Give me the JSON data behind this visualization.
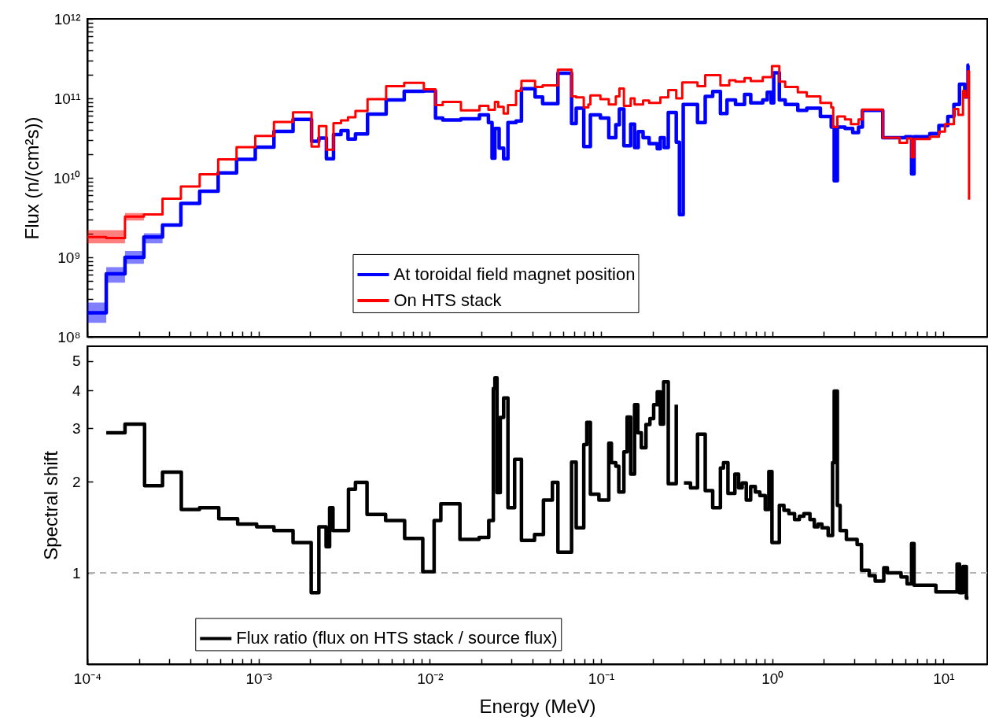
{
  "chart_data": [
    {
      "type": "step",
      "ylabel": "Flux (n/(cm²s))",
      "log": "xy",
      "legend": "bottom",
      "tick_labels": "y",
      "xlim": [
        0.0001,
        18
      ],
      "xticks": [
        {
          "value": 0.0001,
          "label": null
        },
        {
          "value": 0.0002,
          "label": null
        },
        {
          "value": 0.0003,
          "label": null
        },
        {
          "value": 0.0004,
          "label": null
        },
        {
          "value": 0.0005,
          "label": null
        },
        {
          "value": 0.0006,
          "label": null
        },
        {
          "value": 0.0007,
          "label": null
        },
        {
          "value": 0.0008,
          "label": null
        },
        {
          "value": 0.0009,
          "label": null
        },
        {
          "value": 0.001,
          "label": null
        },
        {
          "value": 0.002,
          "label": null
        },
        {
          "value": 0.003,
          "label": null
        },
        {
          "value": 0.004,
          "label": null
        },
        {
          "value": 0.005,
          "label": null
        },
        {
          "value": 0.006,
          "label": null
        },
        {
          "value": 0.007,
          "label": null
        },
        {
          "value": 0.008,
          "label": null
        },
        {
          "value": 0.009,
          "label": null
        },
        {
          "value": 0.01,
          "label": null
        },
        {
          "value": 0.02,
          "label": null
        },
        {
          "value": 0.03,
          "label": null
        },
        {
          "value": 0.04,
          "label": null
        },
        {
          "value": 0.05,
          "label": null
        },
        {
          "value": 0.06,
          "label": null
        },
        {
          "value": 0.07,
          "label": null
        },
        {
          "value": 0.08,
          "label": null
        },
        {
          "value": 0.09,
          "label": null
        },
        {
          "value": 0.1,
          "label": null
        },
        {
          "value": 0.2,
          "label": null
        },
        {
          "value": 0.3,
          "label": null
        },
        {
          "value": 0.4,
          "label": null
        },
        {
          "value": 0.5,
          "label": null
        },
        {
          "value": 0.6,
          "label": null
        },
        {
          "value": 0.7,
          "label": null
        },
        {
          "value": 0.8,
          "label": null
        },
        {
          "value": 0.9,
          "label": null
        },
        {
          "value": 1,
          "label": null
        },
        {
          "value": 2,
          "label": null
        },
        {
          "value": 3,
          "label": null
        },
        {
          "value": 4,
          "label": null
        },
        {
          "value": 5,
          "label": null
        },
        {
          "value": 6,
          "label": null
        },
        {
          "value": 7,
          "label": null
        },
        {
          "value": 8,
          "label": null
        },
        {
          "value": 9,
          "label": null
        },
        {
          "value": 10,
          "label": null
        }
      ],
      "ylim": [
        100000000,
        1000000000000
      ],
      "yticks": [
        {
          "value": 100000000,
          "label": "10⁸"
        },
        {
          "value": 200000000,
          "label": null
        },
        {
          "value": 300000000,
          "label": null
        },
        {
          "value": 400000000,
          "label": null
        },
        {
          "value": 500000000,
          "label": null
        },
        {
          "value": 600000000,
          "label": null
        },
        {
          "value": 700000000,
          "label": null
        },
        {
          "value": 800000000,
          "label": null
        },
        {
          "value": 900000000,
          "label": null
        },
        {
          "value": 1000000000,
          "label": "10⁹"
        },
        {
          "value": 2000000000,
          "label": null
        },
        {
          "value": 3000000000,
          "label": null
        },
        {
          "value": 4000000000,
          "label": null
        },
        {
          "value": 5000000000,
          "label": null
        },
        {
          "value": 6000000000,
          "label": null
        },
        {
          "value": 7000000000,
          "label": null
        },
        {
          "value": 8000000000,
          "label": null
        },
        {
          "value": 9000000000,
          "label": null
        },
        {
          "value": 10000000000,
          "label": "10¹⁰"
        },
        {
          "value": 20000000000,
          "label": null
        },
        {
          "value": 30000000000,
          "label": null
        },
        {
          "value": 40000000000,
          "label": null
        },
        {
          "value": 50000000000,
          "label": null
        },
        {
          "value": 60000000000,
          "label": null
        },
        {
          "value": 70000000000,
          "label": null
        },
        {
          "value": 80000000000,
          "label": null
        },
        {
          "value": 90000000000,
          "label": null
        },
        {
          "value": 100000000000,
          "label": "10¹¹"
        },
        {
          "value": 200000000000,
          "label": null
        },
        {
          "value": 300000000000,
          "label": null
        },
        {
          "value": 400000000000,
          "label": null
        },
        {
          "value": 500000000000,
          "label": null
        },
        {
          "value": 600000000000,
          "label": null
        },
        {
          "value": 700000000000,
          "label": null
        },
        {
          "value": 800000000000,
          "label": null
        },
        {
          "value": 900000000000,
          "label": null
        },
        {
          "value": 1000000000000,
          "label": "10¹²"
        }
      ],
      "series": [
        {
          "name": "At toroidal field magnet position",
          "color": "#0000ff",
          "x": [
            0.0001,
            0.000129,
            0.000166,
            0.000214,
            0.000275,
            0.000352,
            0.000453,
            0.000581,
            0.000744,
            0.000957,
            0.00123,
            0.00159,
            0.00204,
            0.00225,
            0.00249,
            0.00274,
            0.00303,
            0.00333,
            0.00368,
            0.00433,
            0.00556,
            0.00709,
            0.00923,
            0.0108,
            0.0119,
            0.0152,
            0.0195,
            0.022,
            0.0231,
            0.024,
            0.0254,
            0.027,
            0.0286,
            0.0319,
            0.0343,
            0.0412,
            0.0456,
            0.056,
            0.0673,
            0.0716,
            0.0793,
            0.0867,
            0.0992,
            0.111,
            0.122,
            0.128,
            0.136,
            0.149,
            0.157,
            0.165,
            0.176,
            0.191,
            0.213,
            0.222,
            0.234,
            0.247,
            0.275,
            0.287,
            0.302,
            0.366,
            0.406,
            0.449,
            0.498,
            0.544,
            0.61,
            0.689,
            0.749,
            0.88,
            0.935,
            0.985,
            1.02,
            1.1,
            1.19,
            1.41,
            1.59,
            1.91,
            2.21,
            2.3,
            2.4,
            2.66,
            2.95,
            3.19,
            3.36,
            4.42,
            6.0,
            6.51,
            6.73,
            8.32,
            9.4,
            10.6,
            11.5,
            12.4,
            13.3,
            13.9,
            14.1
          ],
          "values": [
            200000000.0,
            620000000.0,
            1000000000.0,
            1800000000.0,
            2550000000.0,
            4780000000.0,
            6780000000.0,
            11500000000.0,
            17100000000.0,
            24300000000.0,
            38300000000.0,
            54200000000.0,
            28900000000.0,
            31600000000.0,
            17400000000.0,
            35100000000.0,
            39300000000.0,
            30700000000.0,
            35600000000.0,
            63500000000.0,
            95700000000.0,
            123000000000.0,
            124000000000.0,
            56600000000.0,
            53300000000.0,
            55200000000.0,
            61800000000.0,
            49700000000.0,
            17700000000.0,
            41700000000.0,
            23700000000.0,
            17400000000.0,
            49700000000.0,
            51900000000.0,
            132000000000.0,
            104000000000.0,
            85500000000.0,
            207000000000.0,
            48300000000.0,
            75000000000.0,
            24700000000.0,
            61800000000.0,
            56600000000.0,
            32000000000.0,
            46700000000.0,
            73700000000.0,
            25300000000.0,
            47500000000.0,
            24000000000.0,
            38200000000.0,
            32000000000.0,
            26900000000.0,
            23200000000.0,
            32000000000.0,
            24000000000.0,
            66200000000.0,
            28100000000.0,
            3440000000.0,
            84000000000.0,
            49700000000.0,
            106000000000.0,
            122000000000.0,
            64600000000.0,
            95700000000.0,
            84000000000.0,
            112000000000.0,
            87700000000.0,
            95700000000.0,
            119000000000.0,
            87700000000.0,
            210000000000.0,
            95700000000.0,
            84000000000.0,
            70500000000.0,
            75000000000.0,
            59200000000.0,
            43500000000.0,
            9200000000.0,
            43500000000.0,
            41700000000.0,
            37200000000.0,
            43500000000.0,
            70500000000.0,
            32000000000.0,
            32900000000.0,
            11200000000.0,
            32900000000.0,
            36000000000.0,
            45500000000.0,
            59200000000.0,
            84000000000.0,
            151000000000.0,
            104000000000.0,
            262000000000.0,
            262000000000.0
          ],
          "lower": [
            150000000.0,
            480000000.0,
            830000000.0,
            1500000000.0,
            2100000000.0,
            null,
            null,
            null,
            null,
            null,
            null,
            null,
            null,
            null,
            null,
            null,
            null,
            null,
            null,
            null,
            null,
            null,
            null,
            null,
            null,
            null,
            null,
            null,
            null,
            null,
            null,
            null,
            null,
            null,
            null,
            null,
            null,
            null,
            null,
            null,
            null,
            null,
            null,
            null,
            null,
            null,
            null,
            null,
            null,
            null,
            null,
            null,
            null,
            null,
            null,
            null,
            null,
            null,
            null,
            null,
            null,
            null,
            null,
            null,
            null,
            null,
            null,
            null,
            null,
            null,
            null,
            null,
            null,
            null,
            null,
            null,
            null,
            null,
            null,
            null,
            null,
            null,
            null,
            null,
            null,
            null,
            null,
            null,
            null,
            null,
            null,
            null,
            null,
            null,
            null
          ],
          "upper": [
            270000000.0,
            750000000.0,
            1200000000.0,
            2000000000.0,
            2800000000.0,
            null,
            null,
            null,
            null,
            null,
            null,
            null,
            null,
            null,
            null,
            null,
            null,
            null,
            null,
            null,
            null,
            null,
            null,
            null,
            null,
            null,
            null,
            null,
            null,
            null,
            null,
            null,
            null,
            null,
            null,
            null,
            null,
            null,
            null,
            null,
            null,
            null,
            null,
            null,
            null,
            null,
            null,
            null,
            null,
            null,
            null,
            null,
            null,
            null,
            null,
            null,
            null,
            null,
            null,
            null,
            null,
            null,
            null,
            null,
            null,
            null,
            null,
            null,
            null,
            null,
            null,
            null,
            null,
            null,
            null,
            null,
            null,
            null,
            null,
            null,
            null,
            null,
            null,
            null,
            null,
            null,
            null,
            null,
            null,
            null,
            null,
            null,
            null,
            null,
            null
          ]
        },
        {
          "name": "On HTS stack",
          "color": "#ff0000",
          "x": [
            0.0001,
            0.000129,
            0.000166,
            0.000214,
            0.000275,
            0.000352,
            0.000453,
            0.000581,
            0.000744,
            0.000957,
            0.00123,
            0.00159,
            0.00204,
            0.00225,
            0.00249,
            0.00274,
            0.00303,
            0.00333,
            0.00368,
            0.00433,
            0.00556,
            0.00709,
            0.00923,
            0.0108,
            0.0119,
            0.0152,
            0.0195,
            0.022,
            0.024,
            0.0251,
            0.027,
            0.0286,
            0.0319,
            0.0343,
            0.0412,
            0.0456,
            0.056,
            0.0673,
            0.0716,
            0.0793,
            0.0843,
            0.0867,
            0.0992,
            0.111,
            0.122,
            0.128,
            0.136,
            0.149,
            0.157,
            0.176,
            0.191,
            0.222,
            0.247,
            0.275,
            0.298,
            0.366,
            0.406,
            0.498,
            0.561,
            0.61,
            0.689,
            0.749,
            0.88,
            0.996,
            1.1,
            1.19,
            1.41,
            1.59,
            1.91,
            2.21,
            2.27,
            2.4,
            2.66,
            2.88,
            3.19,
            3.36,
            4.42,
            5.54,
            6.13,
            6.51,
            6.73,
            8.32,
            9.4,
            10.2,
            11.5,
            12.2,
            13.0,
            13.4,
            13.9,
            14.1
          ],
          "values": [
            1800000000.0,
            1750000000.0,
            3250000000.0,
            3460000000.0,
            5450000000.0,
            7800000000.0,
            11100000000.0,
            17100000000.0,
            24300000000.0,
            33600000000.0,
            50600000000.0,
            66900000000.0,
            24700000000.0,
            44800000000.0,
            22600000000.0,
            48800000000.0,
            52800000000.0,
            57700000000.0,
            69300000000.0,
            97500000000.0,
            142000000000.0,
            157000000000.0,
            130000000000.0,
            82600000000.0,
            90000000000.0,
            70500000000.0,
            80400000000.0,
            71800000000.0,
            90000000000.0,
            78400000000.0,
            64600000000.0,
            82600000000.0,
            124000000000.0,
            166000000000.0,
            139000000000.0,
            146000000000.0,
            230000000000.0,
            106000000000.0,
            103000000000.0,
            77000000000.0,
            84000000000.0,
            109000000000.0,
            97500000000.0,
            84000000000.0,
            106000000000.0,
            133000000000.0,
            80400000000.0,
            100000000000.0,
            84000000000.0,
            94000000000.0,
            87700000000.0,
            103000000000.0,
            127000000000.0,
            100000000000.0,
            159000000000.0,
            142000000000.0,
            196000000000.0,
            146000000000.0,
            169000000000.0,
            162000000000.0,
            180000000000.0,
            165000000000.0,
            185000000000.0,
            255000000000.0,
            162000000000.0,
            139000000000.0,
            119000000000.0,
            106000000000.0,
            87700000000.0,
            77000000000.0,
            43500000000.0,
            59200000000.0,
            54200000000.0,
            47500000000.0,
            54200000000.0,
            72300000000.0,
            32000000000.0,
            27600000000.0,
            31200000000.0,
            18200000000.0,
            30700000000.0,
            32900000000.0,
            38200000000.0,
            47500000000.0,
            73700000000.0,
            61800000000.0,
            124000000000.0,
            104000000000.0,
            220000000000.0,
            5300000000.0
          ],
          "lower": [
            1500000000.0,
            1500000000.0,
            2900000000.0,
            3300000000.0,
            null,
            null,
            null,
            null,
            null,
            null,
            null,
            null,
            null,
            null,
            null,
            null,
            null,
            null,
            null,
            null,
            null,
            null,
            null,
            null,
            null,
            null,
            null,
            null,
            null,
            null,
            null,
            null,
            null,
            null,
            null,
            null,
            null,
            null,
            null,
            null,
            null,
            null,
            null,
            null,
            null,
            null,
            null,
            null,
            null,
            null,
            null,
            null,
            null,
            null,
            null,
            null,
            null,
            null,
            null,
            null,
            null,
            null,
            null,
            null,
            null,
            null,
            null,
            null,
            null,
            null,
            null,
            null,
            null,
            null,
            null,
            null,
            null,
            null,
            null,
            null,
            null,
            null,
            null,
            null,
            null,
            null,
            null,
            null,
            null,
            null
          ],
          "upper": [
            2200000000.0,
            2200000000.0,
            3600000000.0,
            3800000000.0,
            null,
            null,
            null,
            null,
            null,
            null,
            null,
            null,
            null,
            null,
            null,
            null,
            null,
            null,
            null,
            null,
            null,
            null,
            null,
            null,
            null,
            null,
            null,
            null,
            null,
            null,
            null,
            null,
            null,
            null,
            null,
            null,
            null,
            null,
            null,
            null,
            null,
            null,
            null,
            null,
            null,
            null,
            null,
            null,
            null,
            null,
            null,
            null,
            null,
            null,
            null,
            null,
            null,
            null,
            null,
            null,
            null,
            null,
            null,
            null,
            null,
            null,
            null,
            null,
            null,
            null,
            null,
            null,
            null,
            null,
            null,
            null,
            null,
            null,
            null,
            null,
            null,
            null,
            null,
            null,
            null,
            null,
            null,
            null,
            null,
            null
          ]
        }
      ]
    },
    {
      "type": "step",
      "xlabel": "Energy (MeV)",
      "ylabel": "Spectral shift",
      "log": "xy",
      "legend": "bottom left",
      "xlim": [
        0.0001,
        18
      ],
      "xticks": [
        {
          "value": 0.0001,
          "label": "10⁻⁴"
        },
        {
          "value": 0.0002,
          "label": null
        },
        {
          "value": 0.0003,
          "label": null
        },
        {
          "value": 0.0004,
          "label": null
        },
        {
          "value": 0.0005,
          "label": null
        },
        {
          "value": 0.0006,
          "label": null
        },
        {
          "value": 0.0007,
          "label": null
        },
        {
          "value": 0.0008,
          "label": null
        },
        {
          "value": 0.0009,
          "label": null
        },
        {
          "value": 0.001,
          "label": "10⁻³"
        },
        {
          "value": 0.002,
          "label": null
        },
        {
          "value": 0.003,
          "label": null
        },
        {
          "value": 0.004,
          "label": null
        },
        {
          "value": 0.005,
          "label": null
        },
        {
          "value": 0.006,
          "label": null
        },
        {
          "value": 0.007,
          "label": null
        },
        {
          "value": 0.008,
          "label": null
        },
        {
          "value": 0.009,
          "label": null
        },
        {
          "value": 0.01,
          "label": "10⁻²"
        },
        {
          "value": 0.02,
          "label": null
        },
        {
          "value": 0.03,
          "label": null
        },
        {
          "value": 0.04,
          "label": null
        },
        {
          "value": 0.05,
          "label": null
        },
        {
          "value": 0.06,
          "label": null
        },
        {
          "value": 0.07,
          "label": null
        },
        {
          "value": 0.08,
          "label": null
        },
        {
          "value": 0.09,
          "label": null
        },
        {
          "value": 0.1,
          "label": "10⁻¹"
        },
        {
          "value": 0.2,
          "label": null
        },
        {
          "value": 0.3,
          "label": null
        },
        {
          "value": 0.4,
          "label": null
        },
        {
          "value": 0.5,
          "label": null
        },
        {
          "value": 0.6,
          "label": null
        },
        {
          "value": 0.7,
          "label": null
        },
        {
          "value": 0.8,
          "label": null
        },
        {
          "value": 0.9,
          "label": null
        },
        {
          "value": 1,
          "label": "10⁰"
        },
        {
          "value": 2,
          "label": null
        },
        {
          "value": 3,
          "label": null
        },
        {
          "value": 4,
          "label": null
        },
        {
          "value": 5,
          "label": null
        },
        {
          "value": 6,
          "label": null
        },
        {
          "value": 7,
          "label": null
        },
        {
          "value": 8,
          "label": null
        },
        {
          "value": 9,
          "label": null
        },
        {
          "value": 10,
          "label": "10¹"
        }
      ],
      "ylim": [
        0.5,
        5.6
      ],
      "yticks": [
        1,
        2,
        3,
        4,
        5
      ],
      "ref_lines": [
        {
          "axis": "y",
          "value": 1,
          "color": "#b4b4b4",
          "line_style": "dashed"
        }
      ],
      "series": [
        {
          "name": "Flux ratio (flux on HTS stack / source flux)",
          "color": "#000000",
          "x": [
            0.000129,
            0.000166,
            0.000216,
            0.000275,
            0.000354,
            0.000452,
            0.000586,
            0.000755,
            0.000975,
            0.00123,
            0.00159,
            0.00203,
            0.00225,
            0.00248,
            0.0026,
            0.00272,
            0.00335,
            0.00368,
            0.0043,
            0.00552,
            0.00713,
            0.0091,
            0.0106,
            0.0116,
            0.015,
            0.0194,
            0.0221,
            0.0235,
            0.024,
            0.0247,
            0.0258,
            0.027,
            0.0286,
            0.0313,
            0.0343,
            0.0409,
            0.0461,
            0.052,
            0.056,
            0.0673,
            0.0716,
            0.0793,
            0.0826,
            0.0867,
            0.0972,
            0.111,
            0.115,
            0.122,
            0.127,
            0.136,
            0.142,
            0.149,
            0.157,
            0.164,
            0.172,
            0.183,
            0.193,
            0.203,
            0.213,
            0.222,
            0.232,
            0.247,
            0.275,
            0.292,
            0.305,
            0.333,
            0.366,
            0.406,
            0.449,
            0.498,
            0.519,
            0.551,
            0.605,
            0.636,
            0.667,
            0.705,
            0.748,
            0.796,
            0.846,
            0.91,
            0.955,
            0.996,
            1.1,
            1.17,
            1.25,
            1.35,
            1.44,
            1.53,
            1.66,
            1.76,
            1.85,
            1.95,
            2.12,
            2.25,
            2.3,
            2.4,
            2.49,
            2.71,
            3.13,
            3.32,
            3.68,
            3.99,
            4.48,
            4.7,
            5.65,
            6.13,
            6.51,
            6.73,
            9.03,
            12.0,
            12.4,
            13.0,
            13.6,
            14.0
          ],
          "values": [
            2.9,
            3.1,
            1.94,
            2.15,
            1.62,
            1.64,
            1.51,
            1.45,
            1.42,
            1.38,
            1.26,
            0.86,
            1.42,
            1.22,
            1.64,
            1.38,
            1.89,
            1.99,
            1.56,
            1.49,
            1.3,
            1.01,
            1.49,
            1.69,
            1.29,
            1.31,
            1.49,
            4.06,
            4.4,
            1.84,
            3.26,
            3.78,
            1.64,
            2.37,
            1.28,
            1.34,
            1.74,
            1.99,
            1.17,
            2.32,
            1.41,
            2.65,
            3.14,
            1.82,
            1.74,
            2.68,
            2.31,
            2.25,
            1.85,
            2.51,
            3.27,
            2.12,
            3.59,
            2.9,
            2.59,
            3.09,
            3.23,
            3.59,
            3.96,
            3.1,
            4.27,
            1.97,
            3.59,
            null,
            1.98,
            1.91,
            2.87,
            1.87,
            1.64,
            2.22,
            2.31,
            1.83,
            2.12,
            1.91,
            1.98,
            1.74,
            1.93,
            1.85,
            1.8,
            1.62,
            2.16,
            1.26,
            1.67,
            1.61,
            1.57,
            1.5,
            1.54,
            1.57,
            1.5,
            1.42,
            1.45,
            1.41,
            1.33,
            2.31,
            3.98,
            1.67,
            1.38,
            1.29,
            1.24,
            1.02,
            0.98,
            0.94,
            1.04,
            1.0,
            0.97,
            0.92,
            1.25,
            0.91,
            0.865,
            1.07,
            0.86,
            1.05,
            0.826,
            0.826
          ]
        }
      ]
    }
  ]
}
